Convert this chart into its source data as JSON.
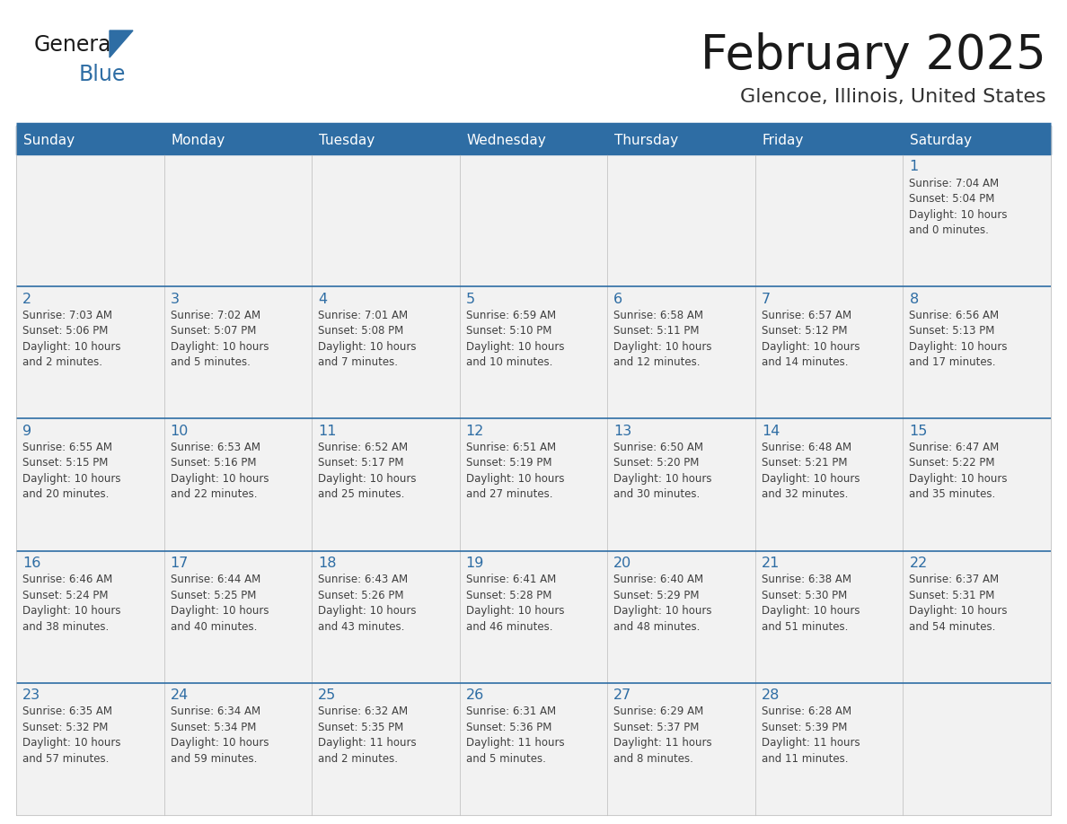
{
  "title": "February 2025",
  "subtitle": "Glencoe, Illinois, United States",
  "days_of_week": [
    "Sunday",
    "Monday",
    "Tuesday",
    "Wednesday",
    "Thursday",
    "Friday",
    "Saturday"
  ],
  "header_bg": "#2E6DA4",
  "header_text": "#FFFFFF",
  "cell_bg": "#F2F2F2",
  "border_color": "#2E6DA4",
  "text_color": "#404040",
  "day_num_color": "#2E6DA4",
  "logo_text_color": "#1a1a1a",
  "logo_blue_color": "#2E6DA4",
  "calendar_data": [
    [
      null,
      null,
      null,
      null,
      null,
      null,
      {
        "day": 1,
        "sunrise": "7:04 AM",
        "sunset": "5:04 PM",
        "daylight": "10 hours",
        "daylight2": "and 0 minutes."
      }
    ],
    [
      {
        "day": 2,
        "sunrise": "7:03 AM",
        "sunset": "5:06 PM",
        "daylight": "10 hours",
        "daylight2": "and 2 minutes."
      },
      {
        "day": 3,
        "sunrise": "7:02 AM",
        "sunset": "5:07 PM",
        "daylight": "10 hours",
        "daylight2": "and 5 minutes."
      },
      {
        "day": 4,
        "sunrise": "7:01 AM",
        "sunset": "5:08 PM",
        "daylight": "10 hours",
        "daylight2": "and 7 minutes."
      },
      {
        "day": 5,
        "sunrise": "6:59 AM",
        "sunset": "5:10 PM",
        "daylight": "10 hours",
        "daylight2": "and 10 minutes."
      },
      {
        "day": 6,
        "sunrise": "6:58 AM",
        "sunset": "5:11 PM",
        "daylight": "10 hours",
        "daylight2": "and 12 minutes."
      },
      {
        "day": 7,
        "sunrise": "6:57 AM",
        "sunset": "5:12 PM",
        "daylight": "10 hours",
        "daylight2": "and 14 minutes."
      },
      {
        "day": 8,
        "sunrise": "6:56 AM",
        "sunset": "5:13 PM",
        "daylight": "10 hours",
        "daylight2": "and 17 minutes."
      }
    ],
    [
      {
        "day": 9,
        "sunrise": "6:55 AM",
        "sunset": "5:15 PM",
        "daylight": "10 hours",
        "daylight2": "and 20 minutes."
      },
      {
        "day": 10,
        "sunrise": "6:53 AM",
        "sunset": "5:16 PM",
        "daylight": "10 hours",
        "daylight2": "and 22 minutes."
      },
      {
        "day": 11,
        "sunrise": "6:52 AM",
        "sunset": "5:17 PM",
        "daylight": "10 hours",
        "daylight2": "and 25 minutes."
      },
      {
        "day": 12,
        "sunrise": "6:51 AM",
        "sunset": "5:19 PM",
        "daylight": "10 hours",
        "daylight2": "and 27 minutes."
      },
      {
        "day": 13,
        "sunrise": "6:50 AM",
        "sunset": "5:20 PM",
        "daylight": "10 hours",
        "daylight2": "and 30 minutes."
      },
      {
        "day": 14,
        "sunrise": "6:48 AM",
        "sunset": "5:21 PM",
        "daylight": "10 hours",
        "daylight2": "and 32 minutes."
      },
      {
        "day": 15,
        "sunrise": "6:47 AM",
        "sunset": "5:22 PM",
        "daylight": "10 hours",
        "daylight2": "and 35 minutes."
      }
    ],
    [
      {
        "day": 16,
        "sunrise": "6:46 AM",
        "sunset": "5:24 PM",
        "daylight": "10 hours",
        "daylight2": "and 38 minutes."
      },
      {
        "day": 17,
        "sunrise": "6:44 AM",
        "sunset": "5:25 PM",
        "daylight": "10 hours",
        "daylight2": "and 40 minutes."
      },
      {
        "day": 18,
        "sunrise": "6:43 AM",
        "sunset": "5:26 PM",
        "daylight": "10 hours",
        "daylight2": "and 43 minutes."
      },
      {
        "day": 19,
        "sunrise": "6:41 AM",
        "sunset": "5:28 PM",
        "daylight": "10 hours",
        "daylight2": "and 46 minutes."
      },
      {
        "day": 20,
        "sunrise": "6:40 AM",
        "sunset": "5:29 PM",
        "daylight": "10 hours",
        "daylight2": "and 48 minutes."
      },
      {
        "day": 21,
        "sunrise": "6:38 AM",
        "sunset": "5:30 PM",
        "daylight": "10 hours",
        "daylight2": "and 51 minutes."
      },
      {
        "day": 22,
        "sunrise": "6:37 AM",
        "sunset": "5:31 PM",
        "daylight": "10 hours",
        "daylight2": "and 54 minutes."
      }
    ],
    [
      {
        "day": 23,
        "sunrise": "6:35 AM",
        "sunset": "5:32 PM",
        "daylight": "10 hours",
        "daylight2": "and 57 minutes."
      },
      {
        "day": 24,
        "sunrise": "6:34 AM",
        "sunset": "5:34 PM",
        "daylight": "10 hours",
        "daylight2": "and 59 minutes."
      },
      {
        "day": 25,
        "sunrise": "6:32 AM",
        "sunset": "5:35 PM",
        "daylight": "11 hours",
        "daylight2": "and 2 minutes."
      },
      {
        "day": 26,
        "sunrise": "6:31 AM",
        "sunset": "5:36 PM",
        "daylight": "11 hours",
        "daylight2": "and 5 minutes."
      },
      {
        "day": 27,
        "sunrise": "6:29 AM",
        "sunset": "5:37 PM",
        "daylight": "11 hours",
        "daylight2": "and 8 minutes."
      },
      {
        "day": 28,
        "sunrise": "6:28 AM",
        "sunset": "5:39 PM",
        "daylight": "11 hours",
        "daylight2": "and 11 minutes."
      },
      null
    ]
  ]
}
